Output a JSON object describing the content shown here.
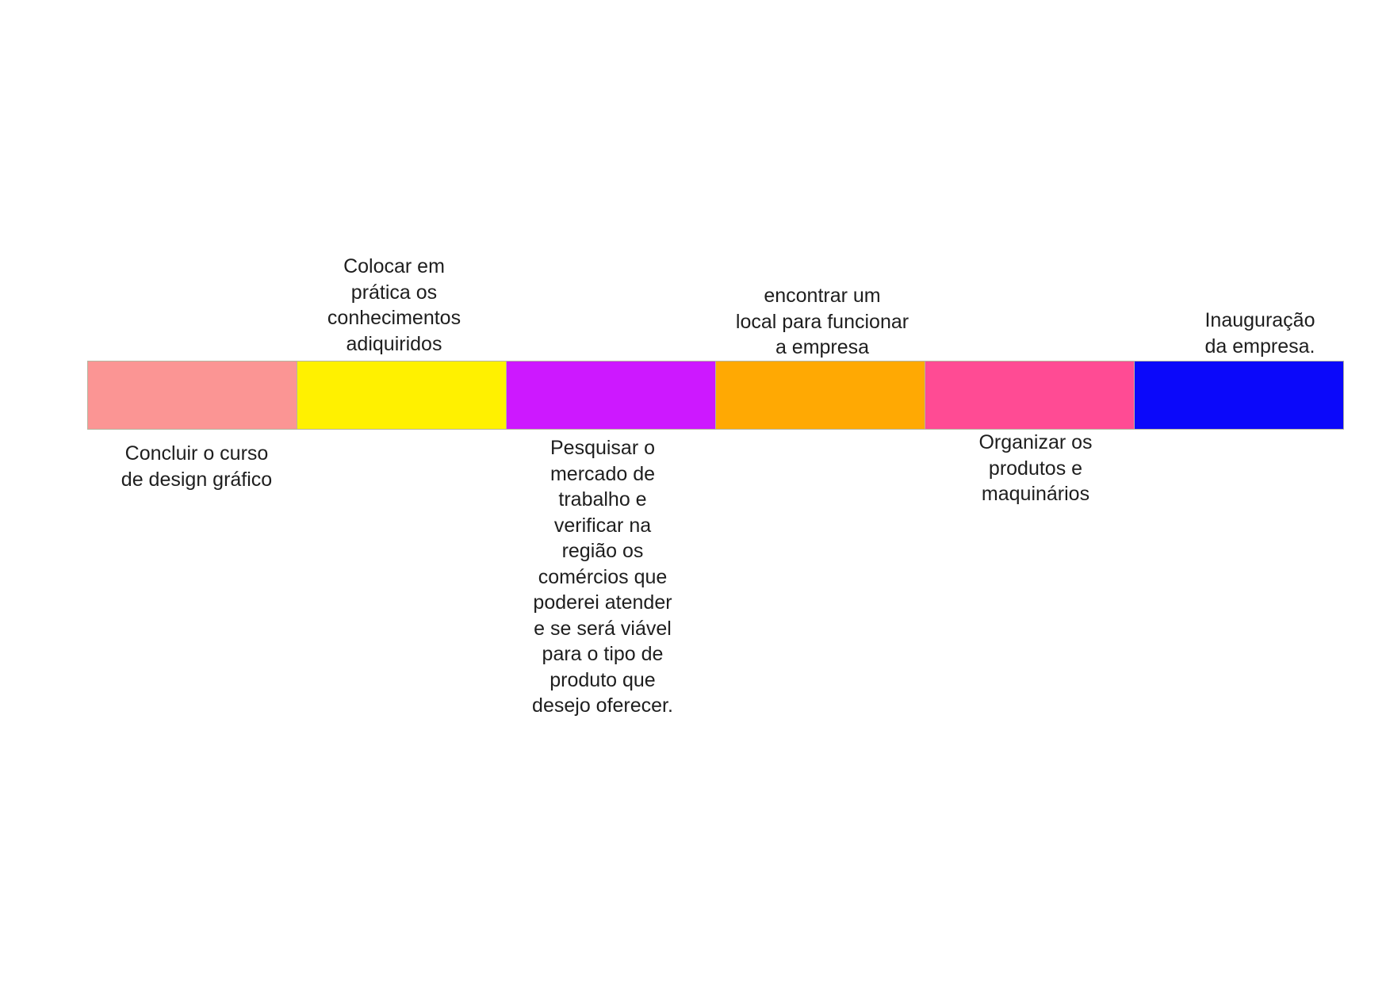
{
  "timeline": {
    "steps": [
      {
        "label": "Concluir o curso\nde design gráfico",
        "color": "#fb9594",
        "position": "below"
      },
      {
        "label": "Colocar em\nprática os\nconhecimentos\nadiquiridos",
        "color": "#fff100",
        "position": "above"
      },
      {
        "label": "Pesquisar o\nmercado de\ntrabalho e\nverificar na\nregião os\ncomércios que\npoderei atender\ne se será viável\npara o tipo de\nproduto que\ndesejo oferecer.",
        "color": "#cd18ff",
        "position": "below"
      },
      {
        "label": "encontrar um\nlocal para funcionar\na empresa",
        "color": "#ffa903",
        "position": "above"
      },
      {
        "label": "Organizar os\nprodutos e\nmaquinários",
        "color": "#ff4b94",
        "position": "below"
      },
      {
        "label": "Inauguração\nda empresa.",
        "color": "#0b08fa",
        "position": "above"
      }
    ]
  }
}
